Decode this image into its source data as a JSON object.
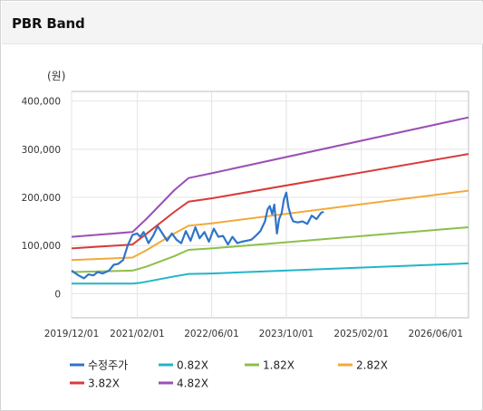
{
  "panel": {
    "title": "PBR Band"
  },
  "chart_data": {
    "type": "line",
    "unit_label": "(원)",
    "x_ticks": [
      "2019/12/01",
      "2021/02/01",
      "2022/06/01",
      "2023/10/01",
      "2025/02/01",
      "2026/06/01"
    ],
    "y_ticks": [
      "0",
      "100,000",
      "200,000",
      "300,000",
      "400,000"
    ],
    "xlim": [
      "2019/12/01",
      "2027/01/01"
    ],
    "ylim": [
      -50000,
      420000
    ],
    "grid": true,
    "legend_position": "bottom",
    "series": [
      {
        "name": "수정주가",
        "color": "#2e75c8",
        "width": 2.2,
        "points": [
          [
            "2019/12/01",
            48000
          ],
          [
            "2020/01/15",
            38000
          ],
          [
            "2020/02/20",
            32000
          ],
          [
            "2020/03/20",
            40000
          ],
          [
            "2020/04/20",
            38000
          ],
          [
            "2020/05/20",
            45000
          ],
          [
            "2020/06/20",
            42000
          ],
          [
            "2020/08/01",
            48000
          ],
          [
            "2020/09/01",
            60000
          ],
          [
            "2020/10/01",
            62000
          ],
          [
            "2020/11/01",
            70000
          ],
          [
            "2020/12/01",
            100000
          ],
          [
            "2021/01/01",
            122000
          ],
          [
            "2021/02/01",
            125000
          ],
          [
            "2021/02/20",
            118000
          ],
          [
            "2021/03/15",
            128000
          ],
          [
            "2021/04/15",
            105000
          ],
          [
            "2021/05/15",
            120000
          ],
          [
            "2021/06/15",
            140000
          ],
          [
            "2021/07/15",
            125000
          ],
          [
            "2021/08/15",
            110000
          ],
          [
            "2021/09/15",
            125000
          ],
          [
            "2021/10/15",
            112000
          ],
          [
            "2021/11/15",
            105000
          ],
          [
            "2021/12/15",
            130000
          ],
          [
            "2022/01/15",
            110000
          ],
          [
            "2022/02/15",
            138000
          ],
          [
            "2022/03/15",
            115000
          ],
          [
            "2022/04/15",
            128000
          ],
          [
            "2022/05/15",
            108000
          ],
          [
            "2022/06/15",
            135000
          ],
          [
            "2022/07/15",
            118000
          ],
          [
            "2022/08/15",
            120000
          ],
          [
            "2022/09/15",
            102000
          ],
          [
            "2022/10/15",
            118000
          ],
          [
            "2022/11/15",
            105000
          ],
          [
            "2022/12/15",
            108000
          ],
          [
            "2023/01/15",
            110000
          ],
          [
            "2023/02/15",
            112000
          ],
          [
            "2023/03/15",
            120000
          ],
          [
            "2023/04/15",
            130000
          ],
          [
            "2023/05/15",
            150000
          ],
          [
            "2023/06/01",
            175000
          ],
          [
            "2023/06/15",
            182000
          ],
          [
            "2023/07/01",
            165000
          ],
          [
            "2023/07/15",
            185000
          ],
          [
            "2023/08/01",
            125000
          ],
          [
            "2023/08/15",
            155000
          ],
          [
            "2023/09/01",
            168000
          ],
          [
            "2023/09/15",
            195000
          ],
          [
            "2023/10/01",
            210000
          ],
          [
            "2023/10/15",
            180000
          ],
          [
            "2023/11/01",
            160000
          ],
          [
            "2023/11/15",
            150000
          ],
          [
            "2023/12/15",
            148000
          ],
          [
            "2024/01/15",
            150000
          ],
          [
            "2024/02/15",
            145000
          ],
          [
            "2024/03/15",
            162000
          ],
          [
            "2024/04/15",
            155000
          ],
          [
            "2024/05/15",
            168000
          ],
          [
            "2024/06/01",
            170000
          ]
        ]
      },
      {
        "name": "0.82X",
        "color": "#22b5c8",
        "width": 2,
        "points": [
          [
            "2019/12/01",
            21000
          ],
          [
            "2021/01/01",
            21000
          ],
          [
            "2021/03/01",
            23000
          ],
          [
            "2021/10/01",
            36000
          ],
          [
            "2022/01/01",
            41000
          ],
          [
            "2022/06/01",
            42000
          ],
          [
            "2027/01/01",
            63000
          ]
        ]
      },
      {
        "name": "1.82X",
        "color": "#8cbf4a",
        "width": 2,
        "points": [
          [
            "2019/12/01",
            45000
          ],
          [
            "2021/01/01",
            48000
          ],
          [
            "2021/04/01",
            56000
          ],
          [
            "2021/10/01",
            78000
          ],
          [
            "2022/01/01",
            91000
          ],
          [
            "2022/06/01",
            94000
          ],
          [
            "2027/01/01",
            138000
          ]
        ]
      },
      {
        "name": "2.82X",
        "color": "#f2a93b",
        "width": 2,
        "points": [
          [
            "2019/12/01",
            70000
          ],
          [
            "2021/01/01",
            75000
          ],
          [
            "2021/04/01",
            90000
          ],
          [
            "2021/10/01",
            125000
          ],
          [
            "2022/01/01",
            141000
          ],
          [
            "2022/06/01",
            146000
          ],
          [
            "2027/01/01",
            214000
          ]
        ]
      },
      {
        "name": "3.82X",
        "color": "#d93a3a",
        "width": 2,
        "points": [
          [
            "2019/12/01",
            94000
          ],
          [
            "2021/01/01",
            102000
          ],
          [
            "2021/04/01",
            124000
          ],
          [
            "2021/10/01",
            170000
          ],
          [
            "2022/01/01",
            191000
          ],
          [
            "2022/06/01",
            198000
          ],
          [
            "2027/01/01",
            290000
          ]
        ]
      },
      {
        "name": "4.82X",
        "color": "#9b4fb5",
        "width": 2,
        "points": [
          [
            "2019/12/01",
            118000
          ],
          [
            "2021/01/01",
            128000
          ],
          [
            "2021/04/01",
            155000
          ],
          [
            "2021/10/01",
            215000
          ],
          [
            "2022/01/01",
            240000
          ],
          [
            "2022/06/01",
            250000
          ],
          [
            "2027/01/01",
            366000
          ]
        ]
      }
    ]
  }
}
